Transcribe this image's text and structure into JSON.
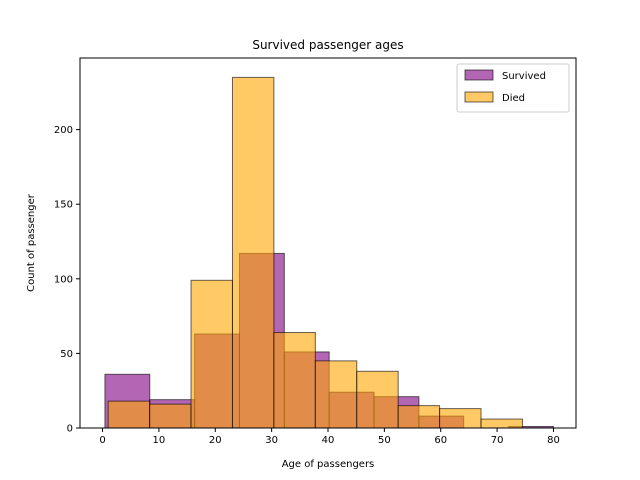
{
  "chart_data": {
    "type": "bar",
    "title": "Survived passenger ages",
    "xlabel": "Age of passengers",
    "ylabel": "Count of passenger",
    "xlim": [
      -4,
      84
    ],
    "ylim": [
      0,
      248
    ],
    "xticks": [
      0,
      10,
      20,
      30,
      40,
      50,
      60,
      70,
      80
    ],
    "yticks": [
      0,
      50,
      100,
      150,
      200
    ],
    "legend": "top-right",
    "grid": false,
    "series": [
      {
        "name": "Survived",
        "color": "#800080",
        "alpha": 0.6,
        "bins": [
          {
            "x0": 0.42,
            "x1": 8.38,
            "count": 36
          },
          {
            "x0": 8.38,
            "x1": 16.34,
            "count": 19
          },
          {
            "x0": 16.34,
            "x1": 24.29,
            "count": 63
          },
          {
            "x0": 24.29,
            "x1": 32.25,
            "count": 117
          },
          {
            "x0": 32.25,
            "x1": 40.21,
            "count": 51
          },
          {
            "x0": 40.21,
            "x1": 48.17,
            "count": 24
          },
          {
            "x0": 48.17,
            "x1": 56.13,
            "count": 21
          },
          {
            "x0": 56.13,
            "x1": 64.08,
            "count": 8
          },
          {
            "x0": 64.08,
            "x1": 72.04,
            "count": 0
          },
          {
            "x0": 72.04,
            "x1": 80.0,
            "count": 1
          }
        ]
      },
      {
        "name": "Died",
        "color": "#FFA500",
        "alpha": 0.6,
        "bins": [
          {
            "x0": 1.0,
            "x1": 8.35,
            "count": 18
          },
          {
            "x0": 8.35,
            "x1": 15.7,
            "count": 16
          },
          {
            "x0": 15.7,
            "x1": 23.05,
            "count": 99
          },
          {
            "x0": 23.05,
            "x1": 30.4,
            "count": 235
          },
          {
            "x0": 30.4,
            "x1": 37.75,
            "count": 64
          },
          {
            "x0": 37.75,
            "x1": 45.1,
            "count": 45
          },
          {
            "x0": 45.1,
            "x1": 52.45,
            "count": 38
          },
          {
            "x0": 52.45,
            "x1": 59.8,
            "count": 15
          },
          {
            "x0": 59.8,
            "x1": 67.15,
            "count": 13
          },
          {
            "x0": 67.15,
            "x1": 74.5,
            "count": 6
          }
        ]
      }
    ]
  }
}
